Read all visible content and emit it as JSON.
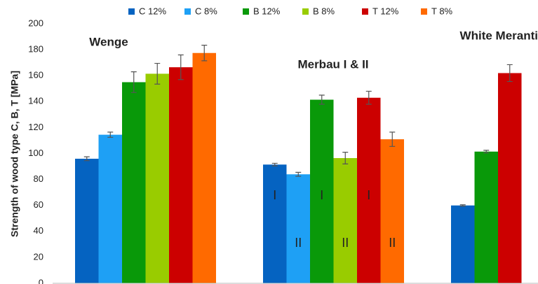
{
  "chart_data": {
    "type": "bar",
    "y_label": "Strength of wood type C, B, T [MPa]",
    "categories": [
      "Wenge",
      "Merbau I & II",
      "White Meranti"
    ],
    "series": [
      {
        "name": "C 12%",
        "color": "#0563c1",
        "values": [
          96,
          91.5,
          60
        ],
        "errors": [
          1.5,
          1,
          0.5
        ]
      },
      {
        "name": "C 8%",
        "color": "#1ea0f5",
        "values": [
          114.5,
          84,
          null
        ],
        "errors": [
          2,
          1.5,
          null
        ]
      },
      {
        "name": "B 12%",
        "color": "#099909",
        "values": [
          155,
          141.5,
          101.5
        ],
        "errors": [
          8,
          3.5,
          1
        ]
      },
      {
        "name": "B 8%",
        "color": "#99cc00",
        "values": [
          161.5,
          96.5,
          null
        ],
        "errors": [
          8,
          4.5,
          null
        ]
      },
      {
        "name": "T 12%",
        "color": "#cc0000",
        "values": [
          166.5,
          143,
          162
        ],
        "errors": [
          9.5,
          5,
          6.5
        ]
      },
      {
        "name": "T 8%",
        "color": "#ff6a00",
        "values": [
          177.5,
          111,
          null
        ],
        "errors": [
          6,
          5.5,
          null
        ]
      }
    ],
    "annotations": [
      "I",
      "II",
      "I",
      "II",
      "I",
      "II"
    ],
    "ylim": [
      0,
      200
    ],
    "yticks": [
      0,
      20,
      40,
      60,
      80,
      100,
      120,
      140,
      160,
      180,
      200
    ],
    "grid": false,
    "legend": "top"
  }
}
